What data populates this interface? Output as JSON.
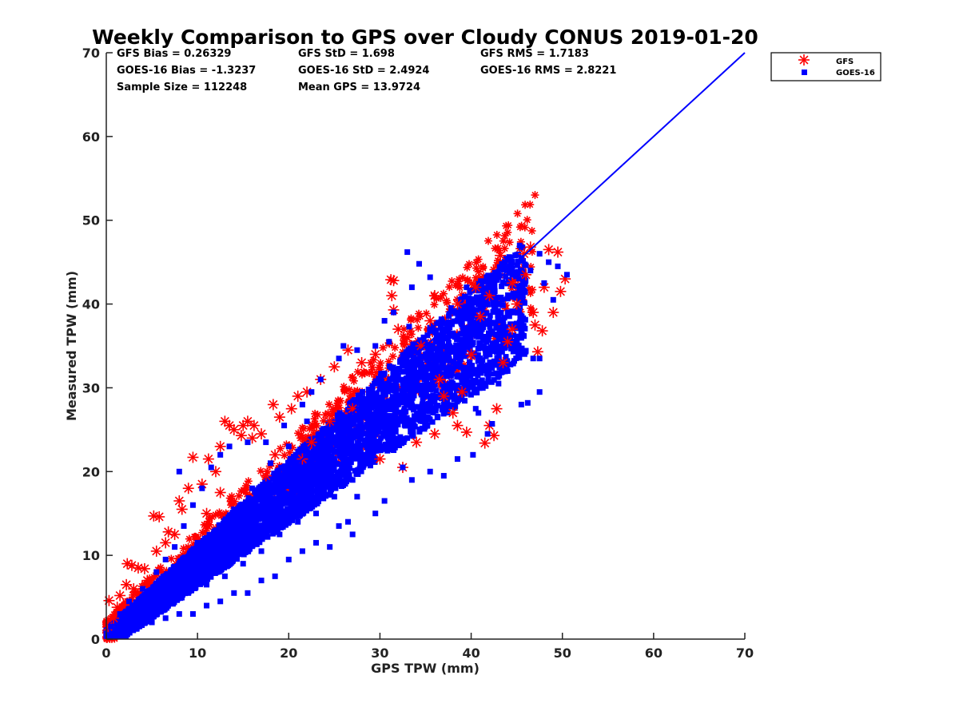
{
  "chart_data": {
    "type": "scatter",
    "title": "Weekly Comparison to GPS over Cloudy CONUS 2019-01-20",
    "xlabel": "GPS TPW (mm)",
    "ylabel": "Measured TPW (mm)",
    "xlim": [
      0,
      70
    ],
    "ylim": [
      0,
      70
    ],
    "xticks": [
      "0",
      "10",
      "20",
      "30",
      "40",
      "50",
      "60",
      "70"
    ],
    "yticks": [
      "0",
      "10",
      "20",
      "30",
      "40",
      "50",
      "60",
      "70"
    ],
    "grid": false,
    "legend_position": "outside-top-right",
    "stats": [
      "GFS Bias = 0.26329",
      "GFS StD = 1.698",
      "GFS RMS = 1.7183",
      "GOES-16 Bias = -1.3237",
      "GOES-16 StD = 2.4924",
      "GOES-16 RMS = 2.8221",
      "Sample Size = 112248",
      "Mean GPS = 13.9724"
    ],
    "series": [
      {
        "name": "GFS",
        "marker": "asterisk",
        "color": "#ff0000",
        "points": [
          [
            0.2,
            1.5
          ],
          [
            0.3,
            4.6
          ],
          [
            0.8,
            2.5
          ],
          [
            1.2,
            3.8
          ],
          [
            1.5,
            5.2
          ],
          [
            2.2,
            6.5
          ],
          [
            2.3,
            9.0
          ],
          [
            2.8,
            8.8
          ],
          [
            3.5,
            8.5
          ],
          [
            4.2,
            8.4
          ],
          [
            3.0,
            6.0
          ],
          [
            4.5,
            7.0
          ],
          [
            5.2,
            14.7
          ],
          [
            5.8,
            14.6
          ],
          [
            6.5,
            11.5
          ],
          [
            7.5,
            12.5
          ],
          [
            8.3,
            15.5
          ],
          [
            9.5,
            21.7
          ],
          [
            9.0,
            18.0
          ],
          [
            10.5,
            18.5
          ],
          [
            11.2,
            21.5
          ],
          [
            12.0,
            20.0
          ],
          [
            12.5,
            23.0
          ],
          [
            13.5,
            25.5
          ],
          [
            14.0,
            25.0
          ],
          [
            14.8,
            24.3
          ],
          [
            15.5,
            26.0
          ],
          [
            16.2,
            25.5
          ],
          [
            17.0,
            24.5
          ],
          [
            18.3,
            28.0
          ],
          [
            19.0,
            26.5
          ],
          [
            20.3,
            27.5
          ],
          [
            21.0,
            29.0
          ],
          [
            22.0,
            29.5
          ],
          [
            23.5,
            31.0
          ],
          [
            25.0,
            32.5
          ],
          [
            26.5,
            34.5
          ],
          [
            28.0,
            33.0
          ],
          [
            29.5,
            34.0
          ],
          [
            31.2,
            42.9
          ],
          [
            31.5,
            42.8
          ],
          [
            31.3,
            41.0
          ],
          [
            31.5,
            39.3
          ],
          [
            32.0,
            37.0
          ],
          [
            33.0,
            36.0
          ],
          [
            34.5,
            35.0
          ],
          [
            35.5,
            38.0
          ],
          [
            36.5,
            31.0
          ],
          [
            37.0,
            29.0
          ],
          [
            38.5,
            25.5
          ],
          [
            39.5,
            24.7
          ],
          [
            40.0,
            34.0
          ],
          [
            41.0,
            38.5
          ],
          [
            41.5,
            23.4
          ],
          [
            42.0,
            25.5
          ],
          [
            42.5,
            24.3
          ],
          [
            42.8,
            27.5
          ],
          [
            43.2,
            45.8
          ],
          [
            43.5,
            33.0
          ],
          [
            44.0,
            35.5
          ],
          [
            44.5,
            37.0
          ],
          [
            45.0,
            40.0
          ],
          [
            45.8,
            46.0
          ],
          [
            46.5,
            46.8
          ],
          [
            46.8,
            39.0
          ],
          [
            47.0,
            37.5
          ],
          [
            47.3,
            34.3
          ],
          [
            47.8,
            36.8
          ],
          [
            48.5,
            46.5
          ],
          [
            49.0,
            39.0
          ],
          [
            49.5,
            46.2
          ],
          [
            49.8,
            41.5
          ],
          [
            50.3,
            43.0
          ],
          [
            48.0,
            42.0
          ],
          [
            46.0,
            43.5
          ],
          [
            44.5,
            42.5
          ],
          [
            42.0,
            41.0
          ],
          [
            40.5,
            42.0
          ],
          [
            38.5,
            40.0
          ],
          [
            36.0,
            41.0
          ],
          [
            5.5,
            10.5
          ],
          [
            6.8,
            12.8
          ],
          [
            8.0,
            16.5
          ],
          [
            13.0,
            26.0
          ],
          [
            15.0,
            25.5
          ],
          [
            16.0,
            24.0
          ],
          [
            24.5,
            26.0
          ],
          [
            27.0,
            27.5
          ],
          [
            30.0,
            21.5
          ],
          [
            32.5,
            20.5
          ],
          [
            34.0,
            23.5
          ],
          [
            36.0,
            24.5
          ],
          [
            38.0,
            27.0
          ],
          [
            39.0,
            29.5
          ],
          [
            21.5,
            21.5
          ],
          [
            22.5,
            23.5
          ],
          [
            17.5,
            19.5
          ],
          [
            18.5,
            22.0
          ],
          [
            11.0,
            15.0
          ],
          [
            12.5,
            17.5
          ]
        ]
      },
      {
        "name": "GOES-16",
        "marker": "square",
        "color": "#0000ff",
        "points": [
          [
            33.0,
            46.2
          ],
          [
            34.3,
            44.8
          ],
          [
            35.5,
            43.2
          ],
          [
            33.5,
            42.0
          ],
          [
            31.5,
            39.0
          ],
          [
            31.0,
            35.5
          ],
          [
            35.5,
            34.5
          ],
          [
            33.2,
            37.3
          ],
          [
            29.5,
            35.0
          ],
          [
            30.5,
            38.0
          ],
          [
            38.0,
            36.5
          ],
          [
            39.5,
            42.0
          ],
          [
            41.0,
            40.5
          ],
          [
            42.5,
            41.5
          ],
          [
            43.5,
            44.5
          ],
          [
            44.5,
            43.5
          ],
          [
            45.5,
            45.5
          ],
          [
            46.5,
            44.0
          ],
          [
            47.5,
            46.0
          ],
          [
            48.5,
            45.0
          ],
          [
            49.5,
            44.5
          ],
          [
            50.5,
            43.5
          ],
          [
            49.0,
            40.5
          ],
          [
            48.0,
            42.5
          ],
          [
            47.5,
            33.5
          ],
          [
            46.8,
            33.5
          ],
          [
            45.5,
            28.0
          ],
          [
            46.2,
            28.2
          ],
          [
            47.5,
            29.5
          ],
          [
            44.0,
            32.0
          ],
          [
            43.0,
            30.5
          ],
          [
            42.3,
            25.7
          ],
          [
            41.8,
            24.5
          ],
          [
            40.5,
            27.5
          ],
          [
            40.8,
            27.0
          ],
          [
            40.2,
            22.0
          ],
          [
            38.5,
            21.5
          ],
          [
            37.0,
            19.5
          ],
          [
            35.5,
            20.0
          ],
          [
            33.5,
            19.0
          ],
          [
            32.5,
            20.5
          ],
          [
            30.5,
            16.5
          ],
          [
            29.5,
            15.0
          ],
          [
            27.5,
            17.0
          ],
          [
            26.5,
            14.0
          ],
          [
            27.0,
            12.5
          ],
          [
            25.5,
            13.5
          ],
          [
            24.5,
            11.0
          ],
          [
            23.0,
            11.5
          ],
          [
            21.5,
            10.5
          ],
          [
            20.0,
            9.5
          ],
          [
            18.5,
            7.5
          ],
          [
            17.0,
            7.0
          ],
          [
            15.5,
            5.5
          ],
          [
            14.0,
            5.5
          ],
          [
            12.5,
            4.5
          ],
          [
            11.0,
            4.0
          ],
          [
            9.5,
            3.0
          ],
          [
            8.0,
            3.0
          ],
          [
            6.5,
            2.5
          ],
          [
            5.0,
            2.0
          ],
          [
            3.5,
            1.5
          ],
          [
            2.0,
            1.0
          ],
          [
            1.0,
            0.5
          ],
          [
            0.5,
            1.5
          ],
          [
            1.5,
            3.0
          ],
          [
            2.5,
            4.5
          ],
          [
            4.0,
            6.0
          ],
          [
            5.5,
            8.0
          ],
          [
            6.5,
            9.5
          ],
          [
            7.5,
            11.0
          ],
          [
            8.5,
            13.5
          ],
          [
            9.5,
            16.0
          ],
          [
            10.5,
            18.0
          ],
          [
            11.5,
            20.5
          ],
          [
            8.0,
            20.0
          ],
          [
            12.5,
            22.0
          ],
          [
            13.5,
            23.0
          ],
          [
            15.5,
            23.5
          ],
          [
            17.5,
            23.5
          ],
          [
            19.5,
            25.5
          ],
          [
            21.5,
            28.0
          ],
          [
            22.5,
            29.5
          ],
          [
            23.5,
            31.0
          ],
          [
            25.5,
            33.5
          ],
          [
            27.5,
            34.5
          ],
          [
            26.0,
            35.0
          ],
          [
            22.0,
            26.0
          ],
          [
            20.0,
            23.0
          ],
          [
            18.0,
            21.0
          ],
          [
            16.0,
            18.0
          ],
          [
            14.0,
            15.5
          ],
          [
            12.0,
            13.0
          ],
          [
            10.0,
            11.5
          ],
          [
            8.0,
            9.0
          ],
          [
            6.0,
            6.5
          ],
          [
            4.0,
            4.0
          ],
          [
            2.5,
            2.5
          ],
          [
            24.0,
            20.0
          ],
          [
            26.0,
            22.5
          ],
          [
            28.0,
            25.0
          ],
          [
            30.0,
            27.0
          ],
          [
            32.0,
            28.0
          ],
          [
            34.0,
            30.5
          ],
          [
            36.0,
            33.0
          ],
          [
            38.0,
            34.5
          ],
          [
            40.0,
            37.0
          ],
          [
            42.0,
            38.0
          ],
          [
            44.0,
            39.0
          ],
          [
            39.0,
            31.0
          ],
          [
            37.0,
            28.0
          ],
          [
            35.0,
            26.0
          ],
          [
            33.0,
            24.0
          ],
          [
            31.0,
            23.0
          ],
          [
            29.0,
            22.0
          ],
          [
            27.0,
            19.0
          ],
          [
            25.0,
            17.0
          ],
          [
            23.0,
            15.0
          ],
          [
            21.0,
            14.0
          ],
          [
            19.0,
            12.5
          ],
          [
            17.0,
            10.5
          ],
          [
            15.0,
            9.0
          ],
          [
            13.0,
            7.5
          ],
          [
            11.0,
            6.5
          ],
          [
            9.0,
            5.5
          ],
          [
            7.0,
            4.5
          ],
          [
            5.0,
            3.5
          ],
          [
            3.0,
            2.5
          ],
          [
            19.0,
            17.0
          ],
          [
            21.0,
            19.5
          ],
          [
            23.0,
            22.0
          ],
          [
            25.0,
            24.0
          ],
          [
            27.0,
            26.5
          ],
          [
            29.0,
            28.5
          ],
          [
            31.0,
            30.5
          ],
          [
            33.0,
            32.5
          ],
          [
            35.0,
            34.0
          ],
          [
            37.0,
            36.0
          ],
          [
            39.0,
            38.0
          ],
          [
            41.0,
            39.5
          ]
        ],
        "fit_line": [
          [
            0,
            0
          ],
          [
            70,
            70
          ]
        ]
      }
    ]
  }
}
